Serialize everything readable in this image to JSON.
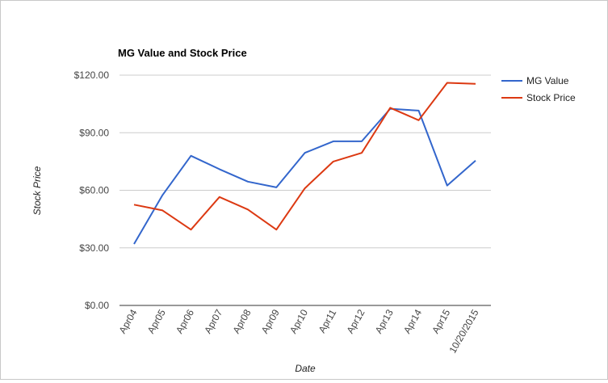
{
  "chart_data": {
    "type": "line",
    "title": "MG Value and Stock Price",
    "xlabel": "Date",
    "ylabel": "Stock Price",
    "categories": [
      "Apr04",
      "Apr05",
      "Apr06",
      "Apr07",
      "Apr08",
      "Apr09",
      "Apr10",
      "Apr11",
      "Apr12",
      "Apr13",
      "Apr14",
      "Apr15",
      "10/20/2015"
    ],
    "ylim": [
      0,
      120
    ],
    "yticks": [
      0,
      30,
      60,
      90,
      120
    ],
    "ytick_labels": [
      "$0.00",
      "$30.00",
      "$60.00",
      "$90.00",
      "$120.00"
    ],
    "grid": true,
    "legend": "right",
    "series": [
      {
        "name": "MG Value",
        "color": "#3366cc",
        "values": [
          32,
          57.5,
          78,
          71,
          64.5,
          61.5,
          79.5,
          85.5,
          85.5,
          102.5,
          101.5,
          62.5,
          75.5
        ]
      },
      {
        "name": "Stock Price",
        "color": "#dc3912",
        "values": [
          52.5,
          49.5,
          39.5,
          56.5,
          50,
          39.5,
          61,
          75,
          79.5,
          103,
          96.5,
          116,
          115.5
        ]
      }
    ]
  }
}
